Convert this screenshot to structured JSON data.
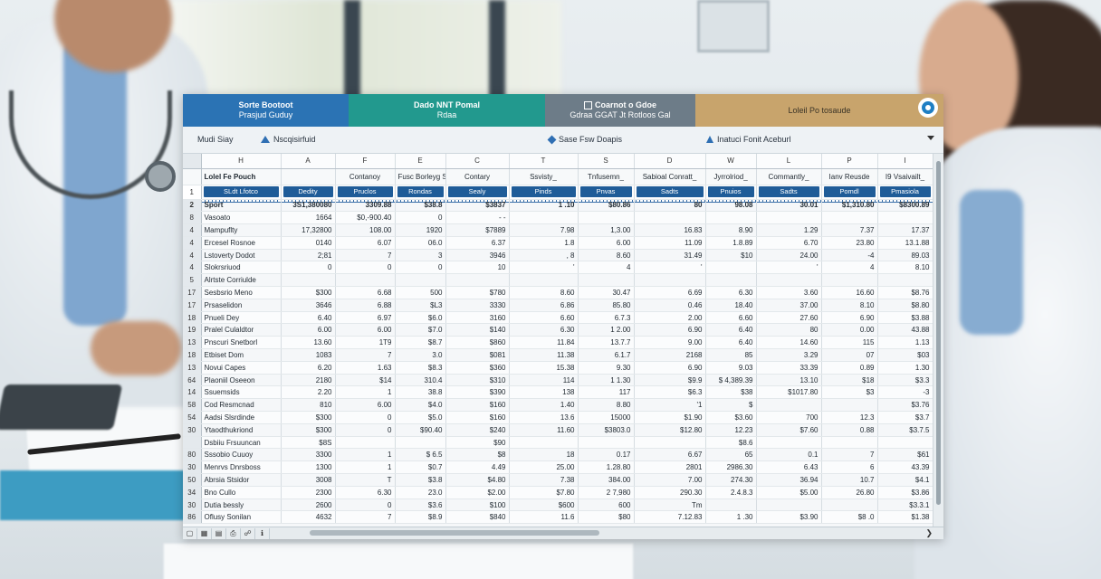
{
  "header_bands": [
    {
      "line1": "Sorte Bootoot",
      "line2": "Prasjud Guduy"
    },
    {
      "line1": "Dado NNT Pomal",
      "line2": "Rdaa"
    },
    {
      "line1": "Coarnot o Gdoe",
      "line2": "Gdraa GGAT Jt Rotloos Gal"
    },
    {
      "line1": "Loleil Po tosaude",
      "line2": ""
    }
  ],
  "toolbar": {
    "item1": "Mudi Siay",
    "item2": "Nscqisirfuid",
    "item3": "Sase Fsw Doapis",
    "item4": "Inatuci Fonit Aceburl"
  },
  "grid": {
    "columns": [
      "H",
      "A",
      "F",
      "E",
      "C",
      "T",
      "S",
      "D",
      "W",
      "L",
      "P",
      "I"
    ],
    "header_row": {
      "rownum": "",
      "cells": [
        "Lolel Fe Pouch",
        "",
        "Contanoy",
        "Fusc Borleyg Ssorrmd",
        "Contary",
        "Ssvisty_",
        "Tnfusemn_",
        "Sabioal Conratt_",
        "Jyrrolriod_",
        "Commantly_",
        "Ianv Reusde",
        "I9 Vsaivailt_"
      ]
    },
    "pill_row": {
      "rownum": "1",
      "cells": [
        "SLdt Lfotco",
        "Dedity",
        "Pruclos",
        "Rondas",
        "Sealy",
        "Pinds",
        "Pnvas",
        "Sadts",
        "Pnuios",
        "Sadts",
        "Pomdl",
        "Pmasiola"
      ]
    },
    "rows": [
      {
        "rownum": "2",
        "bold": true,
        "cells": [
          "Sport",
          "3S1,380080",
          "3309.88",
          "$38.8",
          "$3837",
          "1 .10",
          "$80.86",
          "80",
          "98.08",
          "30.01",
          "$1,310.80",
          "$8300.89"
        ]
      },
      {
        "rownum": "8",
        "cells": [
          "Vasoato",
          "1664",
          "$0,-900.40",
          "0",
          "- -",
          "",
          "",
          "",
          "",
          "",
          "",
          ""
        ]
      },
      {
        "rownum": "4",
        "cells": [
          "Mampuflty",
          "17,32800",
          "108.00",
          "1920",
          "$7889",
          "7.98",
          "1,3.00",
          "16.83",
          "8.90",
          "1.29",
          "7.37",
          "17.37"
        ]
      },
      {
        "rownum": "4",
        "cells": [
          "Ercesel Rosnoe",
          "0140",
          "6.07",
          "06.0",
          "6.37",
          "1.8",
          "6.00",
          "11.09",
          "1.8.89",
          "6.70",
          "23.80",
          "13.1.88"
        ]
      },
      {
        "rownum": "4",
        "cells": [
          "Lstoverty Dodot",
          "2;81",
          "7",
          "3",
          "3946",
          ", 8",
          "8.60",
          "31.49",
          "$10",
          "24.00",
          "-4",
          "89.03"
        ]
      },
      {
        "rownum": "4",
        "cells": [
          "Slokrsriuod",
          "0",
          "0",
          "0",
          "10",
          "'",
          "4",
          "'",
          "",
          "'",
          "4",
          "8.10"
        ]
      },
      {
        "rownum": "5",
        "cells": [
          "Alrtste Corriulde",
          "",
          "",
          "",
          "",
          "",
          "",
          "",
          "",
          "",
          "",
          ""
        ]
      },
      {
        "rownum": "17",
        "cells": [
          "Sesbsrio Meno",
          "$300",
          "6.68",
          "500",
          "$780",
          "8.60",
          "30.47",
          "6.69",
          "6.30",
          "3.60",
          "16.60",
          "$8.76"
        ]
      },
      {
        "rownum": "17",
        "cells": [
          "Prsaselidon",
          "3646",
          "6.88",
          "$L3",
          "3330",
          "6.86",
          "85.80",
          "0.46",
          "18.40",
          "37.00",
          "8.10",
          "$8.80"
        ]
      },
      {
        "rownum": "18",
        "cells": [
          "Pnueli Dey",
          "6.40",
          "6.97",
          "$6.0",
          "3160",
          "6.60",
          "6.7.3",
          "2.00",
          "6.60",
          "27.60",
          "6.90",
          "$3.88"
        ]
      },
      {
        "rownum": "19",
        "cells": [
          "Pralel Culaldtor",
          "6.00",
          "6.00",
          "$7.0",
          "$140",
          "6.30",
          "1 2.00",
          "6.90",
          "6.40",
          "80",
          "0.00",
          "43.88"
        ]
      },
      {
        "rownum": "13",
        "cells": [
          "Pnscuri Snetborl",
          "13.60",
          "1T9",
          "$8.7",
          "$860",
          "11.84",
          "13.7.7",
          "9.00",
          "6.40",
          "14.60",
          "115",
          "1.13"
        ]
      },
      {
        "rownum": "18",
        "cells": [
          "Etbiset Dom",
          "1083",
          "7",
          "3.0",
          "$081",
          "11.38",
          "6.1.7",
          "2168",
          "85",
          "3.29",
          "07",
          "$03"
        ]
      },
      {
        "rownum": "13",
        "cells": [
          "Novui Capes",
          "6.20",
          "1.63",
          "$8.3",
          "$360",
          "15.38",
          "9.30",
          "6.90",
          "9.03",
          "33.39",
          "0.89",
          "1.30"
        ]
      },
      {
        "rownum": "64",
        "cells": [
          "Plaoniil Oseeon",
          "2180",
          "$14",
          "310.4",
          "$310",
          "114",
          "1 1.30",
          "$9.9",
          "$ 4,389.39",
          "13.10",
          "$18",
          "$3.3"
        ]
      },
      {
        "rownum": "14",
        "cells": [
          "Ssuemsids",
          "2.20",
          "1",
          "38.8",
          "$390",
          "138",
          "117",
          "$6.3",
          "$38",
          "$1017.80",
          "$3",
          "-3"
        ]
      },
      {
        "rownum": "58",
        "cells": [
          "Cod Resmcnad",
          "810",
          "6.00",
          "$4.0",
          "$160",
          "1.40",
          "8.80",
          "'1",
          "$",
          "",
          "",
          "$3.76"
        ]
      },
      {
        "rownum": "54",
        "cells": [
          "Aadsi Slsrdinde",
          "$300",
          "0",
          "$5.0",
          "$160",
          "13.6",
          "15000",
          "$1.90",
          "$3.60",
          "700",
          "12.3",
          "$3.7"
        ]
      },
      {
        "rownum": "30",
        "cells": [
          "Ytaodthukriond",
          "$300",
          "0",
          "$90.40",
          "$240",
          "11.60",
          "$3803.0",
          "$12.80",
          "12.23",
          "$7.60",
          "0.88",
          "$3.7.5"
        ]
      },
      {
        "rownum": "",
        "cells": [
          "Dsbiiu Frsuuncan",
          "$8S",
          "",
          "",
          "$90",
          "",
          "",
          "",
          "$8.6",
          "",
          "",
          ""
        ]
      },
      {
        "rownum": "80",
        "cells": [
          "Sssobio Cuuoy",
          "3300",
          "1",
          "$ 6.5",
          "$8",
          "18",
          "0.17",
          "6.67",
          "65",
          "0.1",
          "7",
          "$61"
        ]
      },
      {
        "rownum": "30",
        "cells": [
          "Menrvs Dnrsboss",
          "1300",
          "1",
          "$0.7",
          "4.49",
          "25.00",
          "1.28.80",
          "2801",
          "2986.30",
          "6.43",
          "6",
          "43.39"
        ]
      },
      {
        "rownum": "50",
        "cells": [
          "Abrsia Stsidor",
          "3008",
          "T",
          "$3.8",
          "$4.80",
          "7.38",
          "384.00",
          "7.00",
          "274.30",
          "36.94",
          "10.7",
          "$4.1"
        ]
      },
      {
        "rownum": "34",
        "cells": [
          "Bno Cullo",
          "2300",
          "6.30",
          "23.0",
          "$2.00",
          "$7.80",
          "2 7,980",
          "290.30",
          "2.4.8.3",
          "$5.00",
          "26.80",
          "$3.86"
        ]
      },
      {
        "rownum": "30",
        "cells": [
          "Dutia bessly",
          "2600",
          "0",
          "$3.6",
          "$100",
          "$600",
          "600",
          "Tm",
          "",
          "",
          "",
          "$3.3.1"
        ]
      },
      {
        "rownum": "86",
        "cells": [
          "Oflusy Sonilan",
          "4632",
          "7",
          "$8.9",
          "$840",
          "11.6",
          "$80",
          "7.12.83",
          "1 .30",
          "$3.90",
          "$8 .0",
          "$1.38"
        ]
      }
    ]
  },
  "colors": {
    "band1": "#2b73b4",
    "band2": "#22998e",
    "band3": "#6d7c88",
    "band4": "#c8a46c",
    "pill": "#1f5c98"
  }
}
